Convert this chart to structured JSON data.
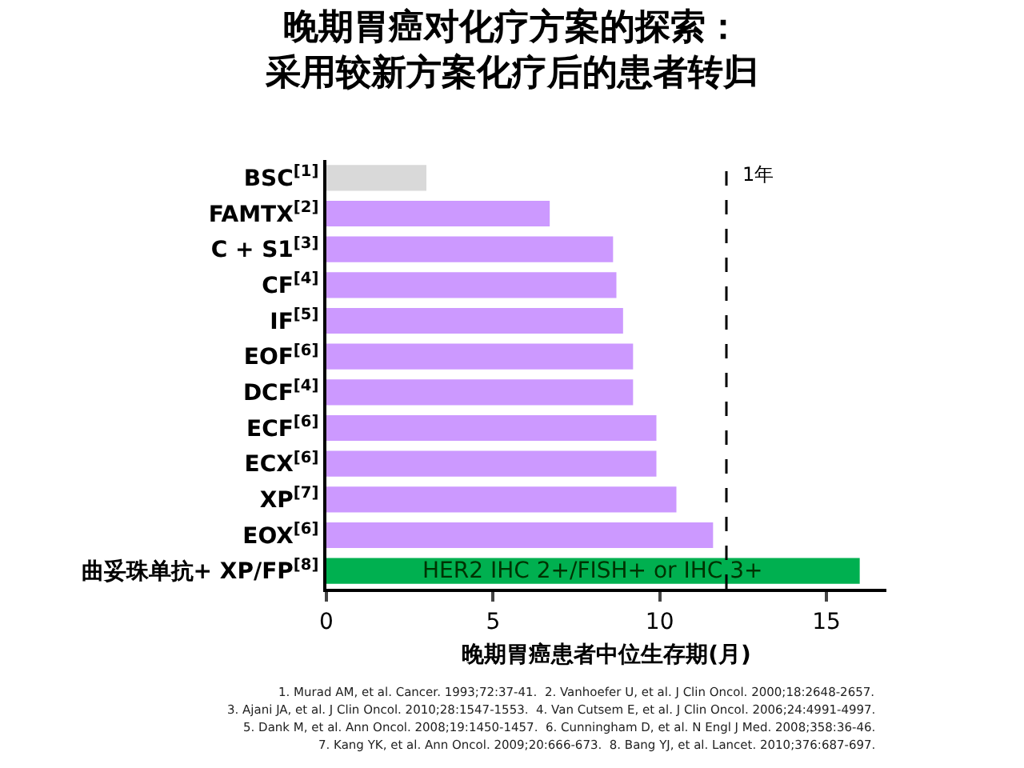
{
  "chart_data": {
    "type": "bar",
    "orientation": "horizontal",
    "title": "晚期胃癌对化疗方案的探索：",
    "subtitle": "采用较新方案化疗后的患者转归",
    "xlabel": "晚期胃癌患者中位生存期(月)",
    "categories": [
      "BSC$^{[1]}$",
      "FAMTX$^{[2]}$",
      "C + S1$^{[3]}$",
      "CF$^{[4]}$",
      "IF$^{[5]}$",
      "EOF$^{[6]}$",
      "DCF$^{[4]}$",
      "ECF$^{[6]}$",
      "ECX$^{[6]}$",
      "XP$^{[7]}$",
      "EOX$^{[6]}$",
      "曲妥珠单抗+ XP/FP$^{[8]}$"
    ],
    "values": [
      3.0,
      6.7,
      8.6,
      8.7,
      8.9,
      9.2,
      9.2,
      9.9,
      9.9,
      10.5,
      11.6,
      16.0
    ],
    "colors": [
      "#d9d9d9",
      "#cc99ff",
      "#cc99ff",
      "#cc99ff",
      "#cc99ff",
      "#cc99ff",
      "#cc99ff",
      "#cc99ff",
      "#cc99ff",
      "#cc99ff",
      "#cc99ff",
      "#00b050"
    ],
    "xlim": [
      0,
      16.8
    ],
    "xticks": [
      0,
      5,
      10,
      15
    ],
    "ref_lines": [
      {
        "axis": "x",
        "value": 12,
        "label": "1年",
        "color": "#000000",
        "line_style": "dashed"
      }
    ],
    "annotations": [
      {
        "text": "HER2 IHC 2+/FISH+ or IHC 3+",
        "x": 8,
        "y": "曲妥珠单抗+ XP/FP$^{[8]}$"
      },
      "1. Murad AM, et al. Cancer. 1993;72:37-41.  2. Vanhoefer U, et al. J Clin Oncol. 2000;18:2648-2657.",
      "3. Ajani JA, et al. J Clin Oncol. 2010;28:1547-1553.  4. Van Cutsem E, et al. J Clin Oncol. 2006;24:4991-4997.",
      "5. Dank M, et al. Ann Oncol. 2008;19:1450-1457.  6. Cunningham D, et al. N Engl J Med. 2008;358:36-46.",
      "7. Kang YK, et al. Ann Oncol. 2009;20:666-673.  8. Bang YJ, et al. Lancet. 2010;376:687-697."
    ]
  }
}
